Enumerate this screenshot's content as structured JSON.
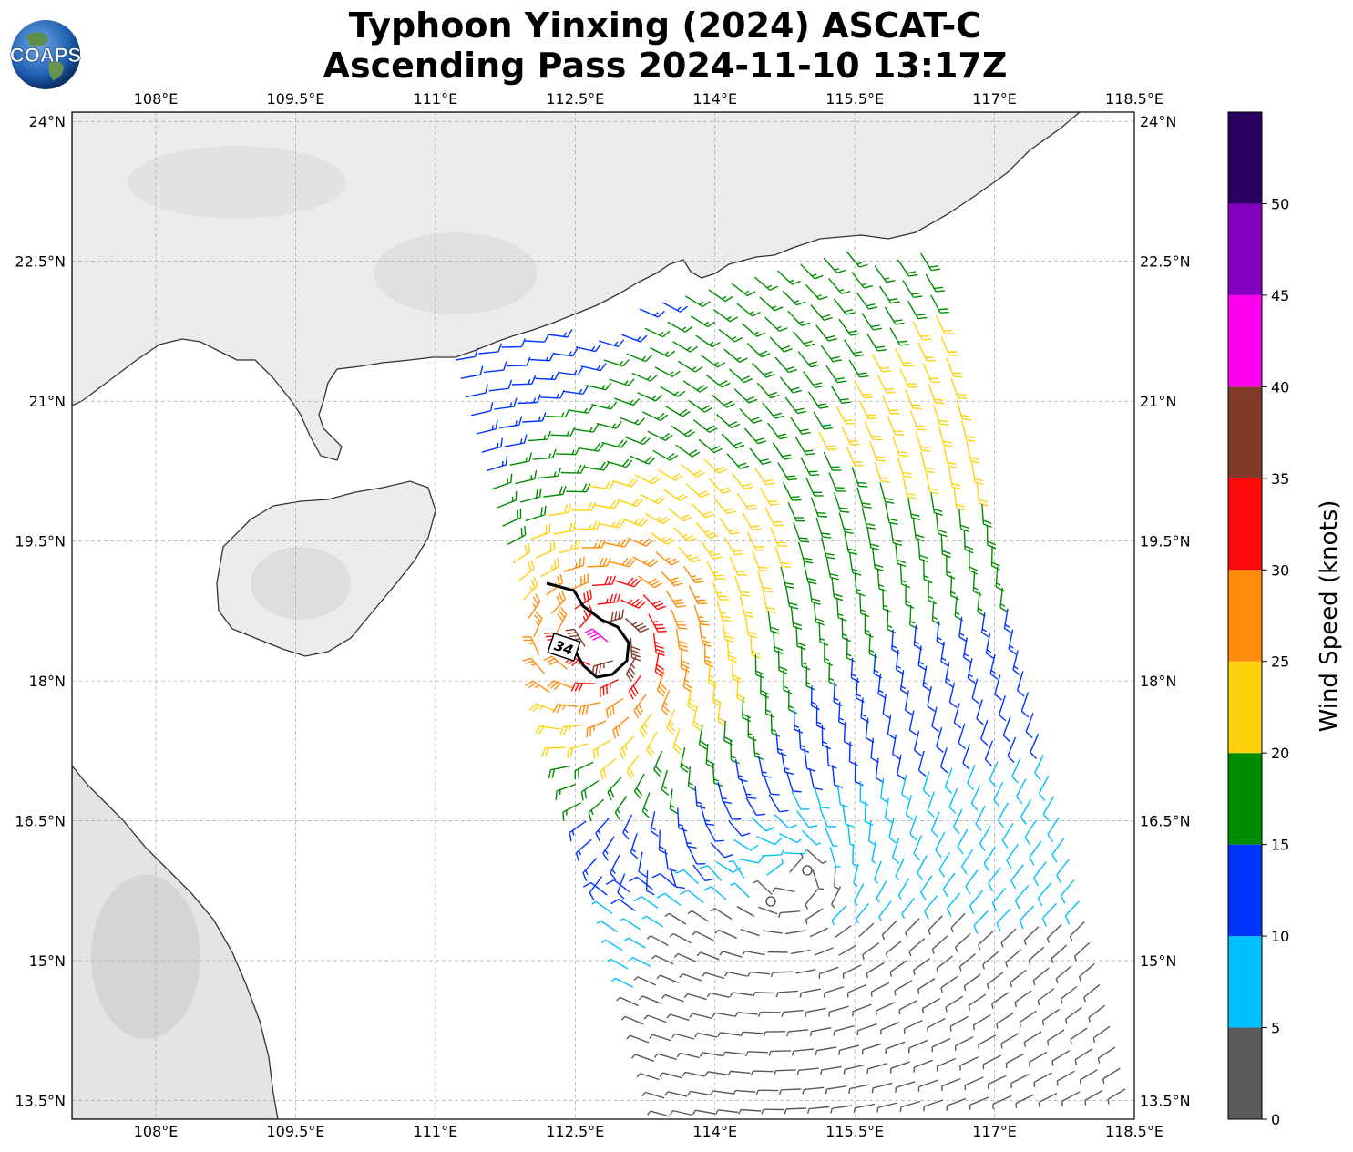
{
  "title": {
    "line1": "Typhoon Yinxing (2024) ASCAT-C",
    "line2": "Ascending Pass 2024-11-10 13:17Z"
  },
  "logo": {
    "text": "COAPS"
  },
  "map": {
    "lon_range": [
      107.1,
      118.5
    ],
    "lat_range": [
      13.3,
      24.1
    ],
    "lon_ticks": [
      "108°E",
      "109.5°E",
      "111°E",
      "112.5°E",
      "114°E",
      "115.5°E",
      "117°E",
      "118.5°E"
    ],
    "lat_ticks": [
      "24°N",
      "22.5°N",
      "21°N",
      "19.5°N",
      "18°N",
      "16.5°N",
      "15°N",
      "13.5°N"
    ],
    "wind_radius_label": "34",
    "land_color": "#ececec",
    "coast_color": "#333333"
  },
  "colorbar": {
    "label": "Wind Speed (knots)",
    "ticks": [
      "0",
      "5",
      "10",
      "15",
      "20",
      "25",
      "30",
      "35",
      "40",
      "45",
      "50"
    ],
    "bins": [
      {
        "from": 0,
        "to": 5,
        "color": "#595959"
      },
      {
        "from": 5,
        "to": 10,
        "color": "#00bfff"
      },
      {
        "from": 10,
        "to": 15,
        "color": "#0033ff"
      },
      {
        "from": 15,
        "to": 20,
        "color": "#008c00"
      },
      {
        "from": 20,
        "to": 25,
        "color": "#ffd10f"
      },
      {
        "from": 25,
        "to": 30,
        "color": "#ff8c0a"
      },
      {
        "from": 30,
        "to": 35,
        "color": "#ff0a0a"
      },
      {
        "from": 35,
        "to": 40,
        "color": "#803a28"
      },
      {
        "from": 40,
        "to": 45,
        "color": "#ff00ee"
      },
      {
        "from": 45,
        "to": 50,
        "color": "#8200bf"
      },
      {
        "from": 50,
        "to": 55,
        "color": "#2a0060"
      }
    ]
  },
  "storm": {
    "center_lon": 112.9,
    "center_lat": 18.45,
    "quiet_center_lon": 114.9,
    "quiet_center_lat": 15.9
  }
}
